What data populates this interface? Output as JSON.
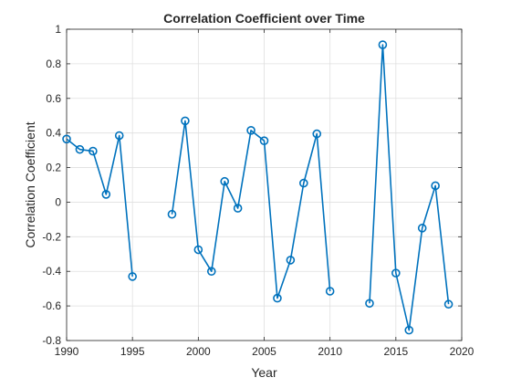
{
  "chart_data": {
    "type": "line",
    "title": "Correlation Coefficient over Time",
    "xlabel": "Year",
    "ylabel": "Correlation Coefficient",
    "xlim": [
      1990,
      2020
    ],
    "ylim": [
      -0.8,
      1
    ],
    "xticks": [
      1990,
      1995,
      2000,
      2005,
      2010,
      2015,
      2020
    ],
    "yticks": [
      -0.8,
      -0.6,
      -0.4,
      -0.2,
      0,
      0.2,
      0.4,
      0.6,
      0.8,
      1
    ],
    "xtick_labels": [
      "1990",
      "1995",
      "2000",
      "2005",
      "2010",
      "2015",
      "2020"
    ],
    "ytick_labels": [
      "-0.8",
      "-0.6",
      "-0.4",
      "-0.2",
      "0",
      "0.2",
      "0.4",
      "0.6",
      "0.8",
      "1"
    ],
    "grid": true,
    "box": true,
    "marker": "circle",
    "line_color": "#0072BD",
    "series": [
      {
        "x": [
          1990,
          1991,
          1992,
          1993,
          1994,
          1995,
          1996,
          1997,
          1998,
          1999,
          2000,
          2001,
          2002,
          2003,
          2004,
          2005,
          2006,
          2007,
          2008,
          2009,
          2010,
          2011,
          2012,
          2013,
          2014,
          2015,
          2016,
          2017,
          2018,
          2019
        ],
        "values": [
          0.365,
          0.305,
          0.295,
          0.045,
          0.385,
          -0.43,
          null,
          null,
          -0.07,
          0.47,
          -0.275,
          -0.4,
          0.12,
          -0.035,
          0.415,
          0.355,
          -0.555,
          -0.335,
          0.11,
          0.395,
          -0.515,
          null,
          null,
          -0.585,
          0.91,
          -0.41,
          -0.74,
          -0.15,
          0.095,
          -0.59
        ]
      }
    ]
  }
}
